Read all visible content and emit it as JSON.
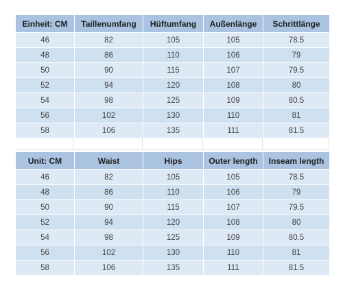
{
  "table_de": {
    "headers": [
      "Einheit: CM",
      "Taillenumfang",
      "Hüftumfang",
      "Außenlänge",
      "Schrittlänge"
    ],
    "rows": [
      [
        "46",
        "82",
        "105",
        "105",
        "78.5"
      ],
      [
        "48",
        "86",
        "110",
        "106",
        "79"
      ],
      [
        "50",
        "90",
        "115",
        "107",
        "79.5"
      ],
      [
        "52",
        "94",
        "120",
        "108",
        "80"
      ],
      [
        "54",
        "98",
        "125",
        "109",
        "80.5"
      ],
      [
        "56",
        "102",
        "130",
        "110",
        "81"
      ],
      [
        "58",
        "106",
        "135",
        "111",
        "81.5"
      ]
    ]
  },
  "table_en": {
    "headers": [
      "Unit: CM",
      "Waist",
      "Hips",
      "Outer length",
      "Inseam length"
    ],
    "rows": [
      [
        "46",
        "82",
        "105",
        "105",
        "78.5"
      ],
      [
        "48",
        "86",
        "110",
        "106",
        "79"
      ],
      [
        "50",
        "90",
        "115",
        "107",
        "79.5"
      ],
      [
        "52",
        "94",
        "120",
        "108",
        "80"
      ],
      [
        "54",
        "98",
        "125",
        "109",
        "80.5"
      ],
      [
        "56",
        "102",
        "130",
        "110",
        "81"
      ],
      [
        "58",
        "106",
        "135",
        "111",
        "81.5"
      ]
    ]
  },
  "colors": {
    "header_bg": "#a9c3e0",
    "row_odd_bg": "#dde9f5",
    "row_even_bg": "#cfe0f1"
  }
}
